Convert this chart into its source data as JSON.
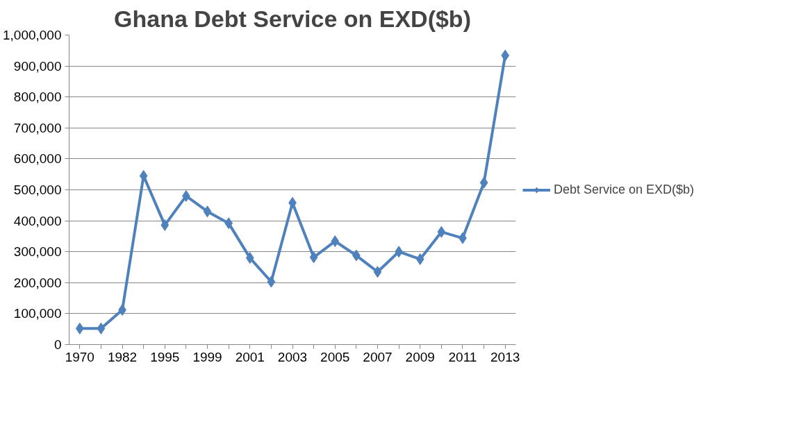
{
  "chart_data": {
    "type": "line",
    "title": "Ghana Debt Service on EXD($b)",
    "categories": [
      "1970",
      null,
      "1982",
      null,
      "1995",
      null,
      "1999",
      null,
      "2001",
      null,
      "2003",
      null,
      "2005",
      null,
      "2007",
      null,
      "2009",
      null,
      "2011",
      null,
      "2013"
    ],
    "series": [
      {
        "name": "Debt Service on EXD($b)",
        "color": "#4f81bd",
        "values": [
          52000,
          52000,
          112000,
          545000,
          386000,
          480000,
          430000,
          392000,
          280000,
          203000,
          458000,
          282000,
          334000,
          288000,
          235000,
          300000,
          276000,
          364000,
          344000,
          523000,
          934000
        ]
      }
    ],
    "ylim": [
      0,
      1000000
    ],
    "yticks": [
      {
        "value": 0,
        "label": "0"
      },
      {
        "value": 100000,
        "label": "100,000"
      },
      {
        "value": 200000,
        "label": "200,000"
      },
      {
        "value": 300000,
        "label": "300,000"
      },
      {
        "value": 400000,
        "label": "400,000"
      },
      {
        "value": 500000,
        "label": "500,000"
      },
      {
        "value": 600000,
        "label": "600,000"
      },
      {
        "value": 700000,
        "label": "700,000"
      },
      {
        "value": 800000,
        "label": "800,000"
      },
      {
        "value": 900000,
        "label": "900,000"
      },
      {
        "value": 1000000,
        "label": "1,000,000"
      }
    ],
    "grid": "y",
    "legend": "right",
    "marker": "diamond",
    "line_style": "solid"
  }
}
